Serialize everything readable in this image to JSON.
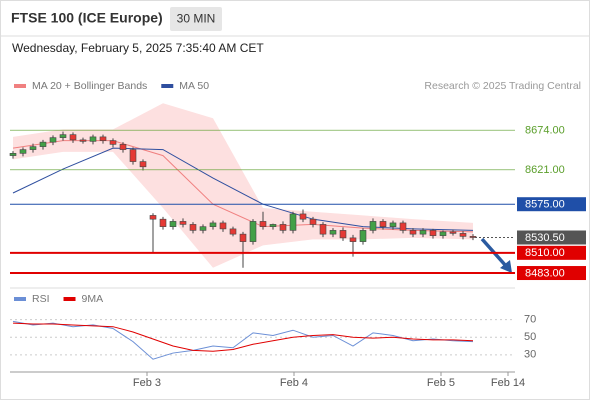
{
  "chart_data": [
    {
      "type": "candlestick",
      "title": "FTSE 100 (ICE Europe)",
      "interval": "30 MIN",
      "subtitle": "Wednesday, February 5, 2025 7:35:40 AM CET",
      "source": "Research © 2025 Trading Central",
      "up_color": "#43a047",
      "down_color": "#e53935",
      "open": [
        8640,
        8643,
        8648,
        8652,
        8658,
        8664,
        8668,
        8661,
        8659,
        8665,
        8660,
        8655,
        8648,
        8632,
        8560,
        8555,
        8545,
        8552,
        8548,
        8540,
        8545,
        8550,
        8542,
        8535,
        8525,
        8552,
        8545,
        8548,
        8540,
        8562,
        8555,
        8548,
        8535,
        8540,
        8530,
        8525,
        8540,
        8552,
        8545,
        8550,
        8540,
        8535,
        8540,
        8533,
        8538,
        8536,
        8532
      ],
      "high": [
        8646,
        8651,
        8656,
        8661,
        8667,
        8672,
        8671,
        8664,
        8668,
        8668,
        8663,
        8658,
        8651,
        8635,
        8563,
        8558,
        8555,
        8556,
        8551,
        8548,
        8553,
        8553,
        8545,
        8538,
        8555,
        8565,
        8549,
        8552,
        8565,
        8568,
        8558,
        8551,
        8543,
        8544,
        8534,
        8543,
        8556,
        8555,
        8553,
        8553,
        8543,
        8543,
        8542,
        8540,
        8541,
        8539,
        8535
      ],
      "low": [
        8636,
        8639,
        8644,
        8648,
        8654,
        8660,
        8657,
        8656,
        8655,
        8656,
        8651,
        8644,
        8628,
        8620,
        8510,
        8541,
        8541,
        8544,
        8536,
        8536,
        8541,
        8538,
        8532,
        8490,
        8521,
        8541,
        8541,
        8536,
        8536,
        8551,
        8544,
        8531,
        8531,
        8526,
        8505,
        8521,
        8536,
        8541,
        8541,
        8536,
        8531,
        8531,
        8529,
        8529,
        8533,
        8528,
        8527
      ],
      "close": [
        8643,
        8648,
        8652,
        8658,
        8664,
        8668,
        8661,
        8659,
        8665,
        8660,
        8655,
        8648,
        8632,
        8625,
        8555,
        8545,
        8552,
        8548,
        8540,
        8545,
        8550,
        8542,
        8535,
        8525,
        8552,
        8545,
        8548,
        8540,
        8562,
        8555,
        8548,
        8535,
        8540,
        8530,
        8525,
        8540,
        8552,
        8545,
        8550,
        8540,
        8535,
        8540,
        8533,
        8538,
        8536,
        8532,
        8530.5
      ],
      "series": [
        {
          "name": "MA 20 + Bollinger Bands",
          "color": "#f08080",
          "band_color": "#fde0e0",
          "x": [
            0,
            5,
            10,
            15,
            20,
            25,
            30,
            35,
            40,
            46
          ],
          "values": [
            8650,
            8660,
            8660,
            8640,
            8575,
            8545,
            8548,
            8543,
            8540,
            8538
          ],
          "upper": [
            8665,
            8675,
            8675,
            8710,
            8690,
            8570,
            8565,
            8560,
            8555,
            8550
          ],
          "lower": [
            8635,
            8645,
            8645,
            8570,
            8490,
            8520,
            8528,
            8528,
            8530,
            8528
          ]
        },
        {
          "name": "MA 50",
          "color": "#2f4f9f",
          "x": [
            0,
            5,
            10,
            15,
            20,
            25,
            30,
            35,
            40,
            46
          ],
          "values": [
            8590,
            8622,
            8650,
            8648,
            8610,
            8575,
            8555,
            8545,
            8542,
            8540
          ]
        }
      ],
      "levels": [
        {
          "value": 8674,
          "label": "8674.00",
          "color": "#5a9e2a",
          "boxed": false,
          "line_width": 0.6
        },
        {
          "value": 8621,
          "label": "8621.00",
          "color": "#5a9e2a",
          "boxed": false,
          "line_width": 0.6
        },
        {
          "value": 8575,
          "label": "8575.00",
          "color": "#1f4fa8",
          "boxed": true,
          "line_width": 1
        },
        {
          "value": 8530.5,
          "label": "8530.50",
          "color": "#555555",
          "boxed": true,
          "line_width": 0
        },
        {
          "value": 8510,
          "label": "8510.00",
          "color": "#e00000",
          "boxed": true,
          "line_width": 2
        },
        {
          "value": 8483,
          "label": "8483.00",
          "color": "#e00000",
          "boxed": true,
          "line_width": 2
        }
      ],
      "xlim": [
        -0.3,
        50.2
      ],
      "ylim": [
        8467,
        8721
      ]
    },
    {
      "type": "line",
      "series": [
        {
          "name": "RSI",
          "color": "#6b8fd6",
          "x": [
            0,
            2,
            4,
            6,
            8,
            10,
            12,
            14,
            16,
            18,
            20,
            22,
            24,
            26,
            28,
            30,
            32,
            34,
            36,
            38,
            40,
            42,
            44,
            46
          ],
          "values": [
            68,
            64,
            66,
            62,
            64,
            60,
            45,
            25,
            32,
            35,
            40,
            38,
            55,
            52,
            58,
            50,
            52,
            40,
            55,
            52,
            46,
            48,
            46,
            45
          ]
        },
        {
          "name": "9MA",
          "color": "#e00000",
          "x": [
            0,
            2,
            4,
            6,
            8,
            10,
            12,
            14,
            16,
            18,
            20,
            22,
            24,
            26,
            28,
            30,
            32,
            34,
            36,
            38,
            40,
            42,
            44,
            46
          ],
          "values": [
            66,
            65,
            65,
            64,
            63,
            62,
            56,
            48,
            40,
            35,
            34,
            36,
            42,
            46,
            50,
            52,
            53,
            50,
            49,
            50,
            48,
            47,
            47,
            46
          ]
        }
      ],
      "xlim": [
        -0.3,
        50.2
      ],
      "xticks": [
        {
          "value": 13.4,
          "label": "Feb 3"
        },
        {
          "value": 28.1,
          "label": "Feb 4"
        },
        {
          "value": 42.8,
          "label": "Feb 5"
        },
        {
          "value": 49.5,
          "label": "Feb 14"
        }
      ],
      "ylim": [
        15,
        81
      ],
      "yticks": [
        30,
        50,
        70
      ],
      "grid": true
    }
  ]
}
